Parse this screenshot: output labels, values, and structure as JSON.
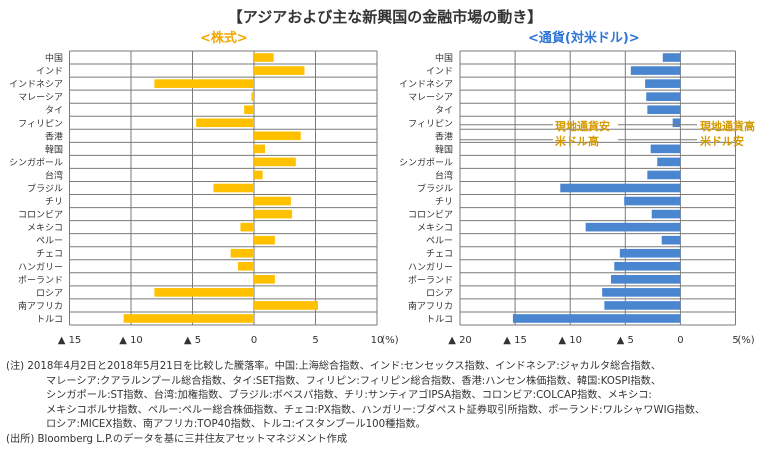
{
  "title": "【アジアおよび主な新興国の金融市場の動き】",
  "chart_data": [
    {
      "type": "bar",
      "orientation": "horizontal",
      "title": "<株式>",
      "xlabel": "(%)",
      "xlim": [
        -15,
        10
      ],
      "x_ticks": [
        -15,
        -10,
        -5,
        0,
        5,
        10
      ],
      "x_tick_labels": [
        "▲ 15",
        "▲ 10",
        "▲ 5",
        "0",
        "5",
        "10"
      ],
      "unit_label": "(%)",
      "grid": true,
      "color": "#FFC000",
      "categories": [
        "中国",
        "インド",
        "インドネシア",
        "マレーシア",
        "タイ",
        "フィリピン",
        "香港",
        "韓国",
        "シンガポール",
        "台湾",
        "ブラジル",
        "チリ",
        "コロンビア",
        "メキシコ",
        "ペルー",
        "チェコ",
        "ハンガリー",
        "ポーランド",
        "ロシア",
        "南アフリカ",
        "トルコ"
      ],
      "values": [
        1.6,
        4.1,
        -8.1,
        -0.2,
        -0.8,
        -4.7,
        3.8,
        0.9,
        3.4,
        0.7,
        -3.3,
        3.0,
        3.1,
        -1.1,
        1.7,
        -1.9,
        -1.3,
        1.7,
        -8.1,
        5.2,
        -10.6
      ]
    },
    {
      "type": "bar",
      "orientation": "horizontal",
      "title": "<通貨(対米ドル)>",
      "xlabel": "(%)",
      "xlim": [
        -20,
        5
      ],
      "x_ticks": [
        -20,
        -15,
        -10,
        -5,
        0,
        5
      ],
      "x_tick_labels": [
        "▲ 20",
        "▲ 15",
        "▲ 10",
        "▲ 5",
        "0",
        "5"
      ],
      "unit_label": "(%)",
      "grid": true,
      "color": "#4A86D0",
      "categories": [
        "中国",
        "インド",
        "インドネシア",
        "マレーシア",
        "タイ",
        "フィリピン",
        "香港",
        "韓国",
        "シンガポール",
        "台湾",
        "ブラジル",
        "チリ",
        "コロンビア",
        "メキシコ",
        "ペルー",
        "チェコ",
        "ハンガリー",
        "ポーランド",
        "ロシア",
        "南アフリカ",
        "トルコ"
      ],
      "values": [
        -1.6,
        -4.5,
        -3.2,
        -3.1,
        -3.0,
        -0.7,
        0.0,
        -2.7,
        -2.1,
        -3.0,
        -10.9,
        -5.1,
        -2.6,
        -8.6,
        -1.7,
        -5.5,
        -6.0,
        -6.3,
        -7.1,
        -6.9,
        -15.2
      ],
      "annotations": [
        {
          "text_lines": [
            "現地通貨安",
            "米ドル高"
          ],
          "side": "left"
        },
        {
          "text_lines": [
            "現地通貨高",
            "米ドル安"
          ],
          "side": "right"
        }
      ]
    }
  ],
  "notes": {
    "lines": [
      "(注) 2018年4月2日と2018年5月21日を比較した騰落率。中国:上海総合指数、インド:センセックス指数、インドネシア:ジャカルタ総合指数、",
      "マレーシア:クアラルンプール総合指数、タイ:SET指数、フィリピン:フィリピン総合指数、香港:ハンセン株価指数、韓国:KOSPI指数、",
      "シンガポール:ST指数、台湾:加権指数、ブラジル:ボベスパ指数、チリ:サンティアゴIPSA指数、コロンビア:COLCAP指数、メキシコ:",
      "メキシコボルサ指数、ペルー:ペルー総合株価指数、チェコ:PX指数、ハンガリー:ブダペスト証券取引所指数、ポーランド:ワルシャワWIG指数、",
      "ロシア:MICEX指数、南アフリカ:TOP40指数、トルコ:イスタンブール100種指数。"
    ],
    "source": "(出所) Bloomberg L.P.のデータを基に三井住友アセットマネジメント作成"
  }
}
